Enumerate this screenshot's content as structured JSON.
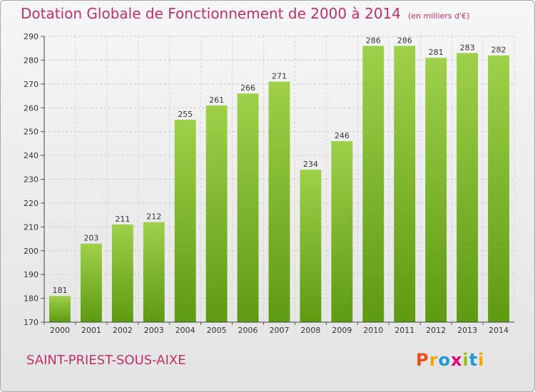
{
  "title": "Dotation Globale de Fonctionnement de 2000 à 2014",
  "subtitle": "(en milliers d'€)",
  "commune": "SAINT-PRIEST-SOUS-AIXE",
  "logo": {
    "letters": [
      "P",
      "r",
      "o",
      "x",
      "i",
      "t",
      "i"
    ],
    "colors": [
      "#e94e1b",
      "#f3a600",
      "#1d9ad6",
      "#e5007d",
      "#95c11f",
      "#1d9ad6",
      "#f3a600"
    ]
  },
  "colors": {
    "bar_top": "#9fd04a",
    "bar_bottom": "#5e9a12",
    "accent": "#c0306b"
  },
  "chart_data": {
    "type": "bar",
    "categories": [
      "2000",
      "2001",
      "2002",
      "2003",
      "2004",
      "2005",
      "2006",
      "2007",
      "2008",
      "2009",
      "2010",
      "2011",
      "2012",
      "2013",
      "2014"
    ],
    "values": [
      181,
      203,
      211,
      212,
      255,
      261,
      266,
      271,
      234,
      246,
      286,
      286,
      281,
      283,
      282
    ],
    "ylim": [
      170,
      290
    ],
    "yticks": [
      170,
      180,
      190,
      200,
      210,
      220,
      230,
      240,
      250,
      260,
      270,
      280,
      290
    ],
    "grid": true,
    "data_labels": true
  }
}
